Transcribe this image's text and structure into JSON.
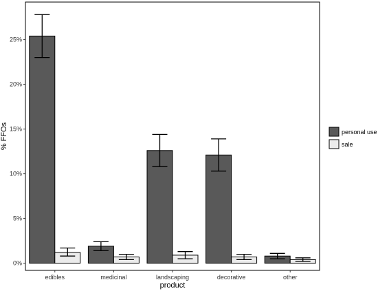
{
  "chart_data": {
    "type": "bar",
    "title": "",
    "xlabel": "product",
    "ylabel": "% FFOs",
    "categories": [
      "edibles",
      "medicinal",
      "landscaping",
      "decorative",
      "other"
    ],
    "series": [
      {
        "name": "personal use",
        "color": "#595959",
        "values": [
          25.4,
          1.9,
          12.6,
          12.1,
          0.8
        ],
        "error_low": [
          23.0,
          1.4,
          10.8,
          10.3,
          0.5
        ],
        "error_high": [
          27.8,
          2.4,
          14.4,
          13.9,
          1.1
        ]
      },
      {
        "name": "sale",
        "color": "#ebebeb",
        "values": [
          1.2,
          0.7,
          0.9,
          0.7,
          0.4
        ],
        "error_low": [
          0.8,
          0.4,
          0.5,
          0.4,
          0.2
        ],
        "error_high": [
          1.7,
          1.0,
          1.3,
          1.0,
          0.6
        ]
      }
    ],
    "ylim": [
      -0.8,
      29.2
    ],
    "yticks": [
      0,
      5,
      10,
      15,
      20,
      25
    ],
    "ytick_labels": [
      "0%",
      "5%",
      "10%",
      "15%",
      "20%",
      "25%"
    ],
    "grid": false,
    "legend_position": "right"
  }
}
